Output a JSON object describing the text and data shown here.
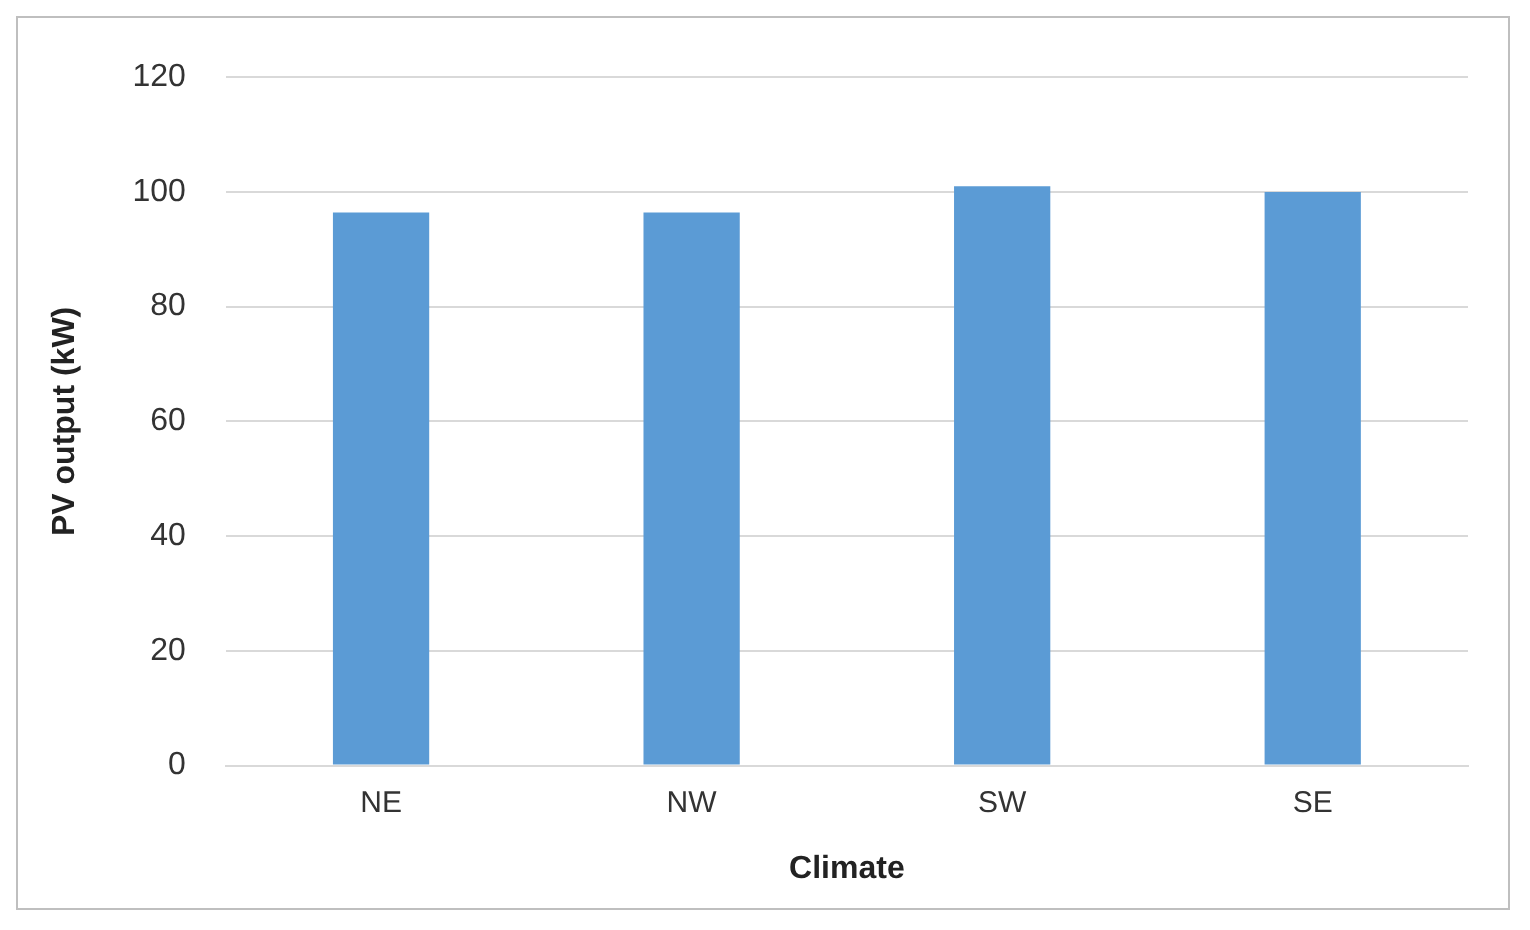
{
  "chart_data": {
    "type": "bar",
    "xlabel": "Climate",
    "ylabel": "PV output (kW)",
    "categories": [
      "NE",
      "NW",
      "SW",
      "SE"
    ],
    "values": [
      96.4,
      96.4,
      101,
      100
    ],
    "color": "#5b9bd5",
    "ylim": [
      0,
      120
    ],
    "yticks": [
      0,
      20,
      40,
      60,
      80,
      100,
      120
    ],
    "grid": "y"
  }
}
